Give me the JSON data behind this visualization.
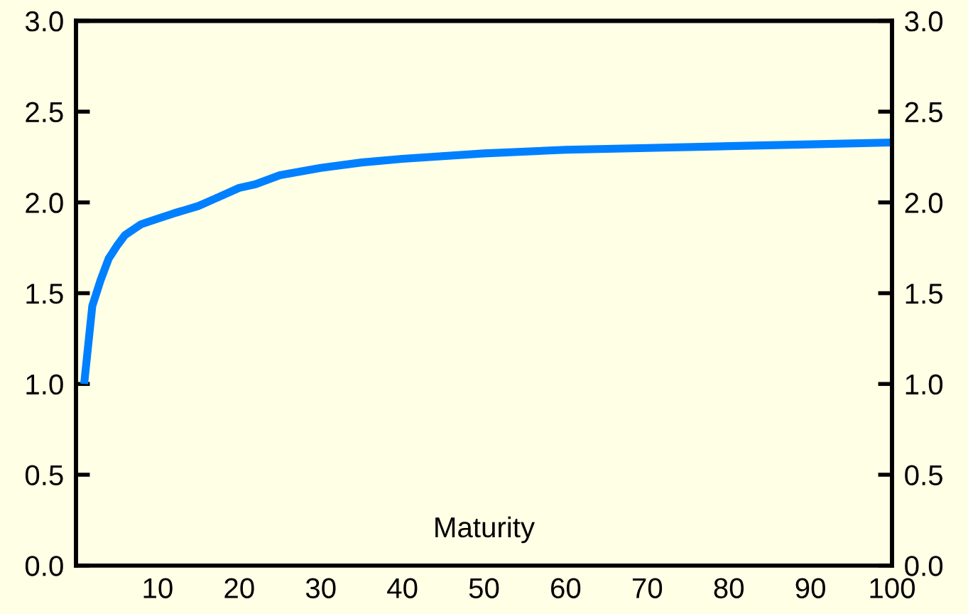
{
  "chart_data": {
    "type": "line",
    "xlabel": "Maturity",
    "x": [
      1,
      2,
      3,
      4,
      5,
      6,
      7,
      8,
      10,
      12,
      15,
      17,
      20,
      22,
      25,
      30,
      35,
      40,
      50,
      60,
      70,
      80,
      90,
      100
    ],
    "series": [
      {
        "color": "#0080ff",
        "values": [
          1.0,
          1.43,
          1.57,
          1.69,
          1.76,
          1.82,
          1.85,
          1.88,
          1.91,
          1.94,
          1.98,
          2.02,
          2.08,
          2.1,
          2.15,
          2.19,
          2.22,
          2.24,
          2.27,
          2.29,
          2.3,
          2.31,
          2.32,
          2.33
        ]
      }
    ],
    "xlim": [
      0,
      100
    ],
    "xticks": [
      10,
      20,
      30,
      40,
      50,
      60,
      70,
      80,
      90,
      100
    ],
    "ylim": [
      0,
      3
    ],
    "yticks": [
      {
        "value": 0,
        "label": "0.0"
      },
      {
        "value": 0.5,
        "label": "0.5"
      },
      {
        "value": 1,
        "label": "1.0"
      },
      {
        "value": 1.5,
        "label": "1.5"
      },
      {
        "value": 2,
        "label": "2.0"
      },
      {
        "value": 2.5,
        "label": "2.5"
      },
      {
        "value": 3,
        "label": "3.0"
      }
    ],
    "y2lim": [
      0,
      3
    ],
    "y2ticks": [
      {
        "value": 0,
        "label": "0.0"
      },
      {
        "value": 0.5,
        "label": "0.5"
      },
      {
        "value": 1,
        "label": "1.0"
      },
      {
        "value": 1.5,
        "label": "1.5"
      },
      {
        "value": 2,
        "label": "2.0"
      },
      {
        "value": 2.5,
        "label": "2.5"
      },
      {
        "value": 3,
        "label": "3.0"
      }
    ],
    "grid": false,
    "legend": false,
    "marker": "none",
    "line_style": "solid"
  }
}
